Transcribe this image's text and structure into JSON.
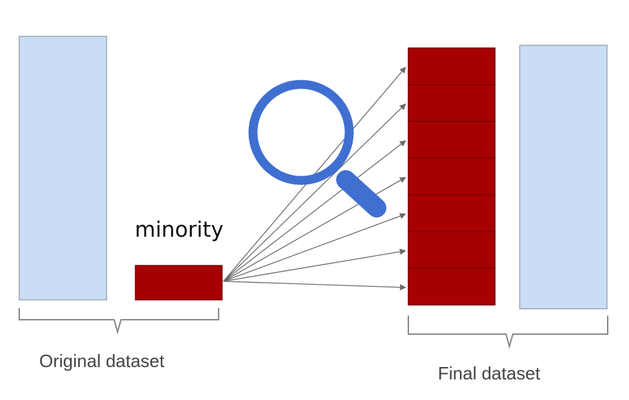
{
  "diagram": {
    "labels": {
      "minority": "minority",
      "original": "Original dataset",
      "final": "Final dataset"
    },
    "colors": {
      "majority_fill": "#c9def5",
      "majority_stroke": "#9aa7b5",
      "minority_fill": "#a60000",
      "minority_stroke": "#7a0000",
      "arrow": "#6a6a6a",
      "magnifier": "#3f6fd0",
      "brace": "#888888"
    },
    "replicated_minority_blocks": 7,
    "icons": [
      "magnifying-glass-icon"
    ]
  }
}
